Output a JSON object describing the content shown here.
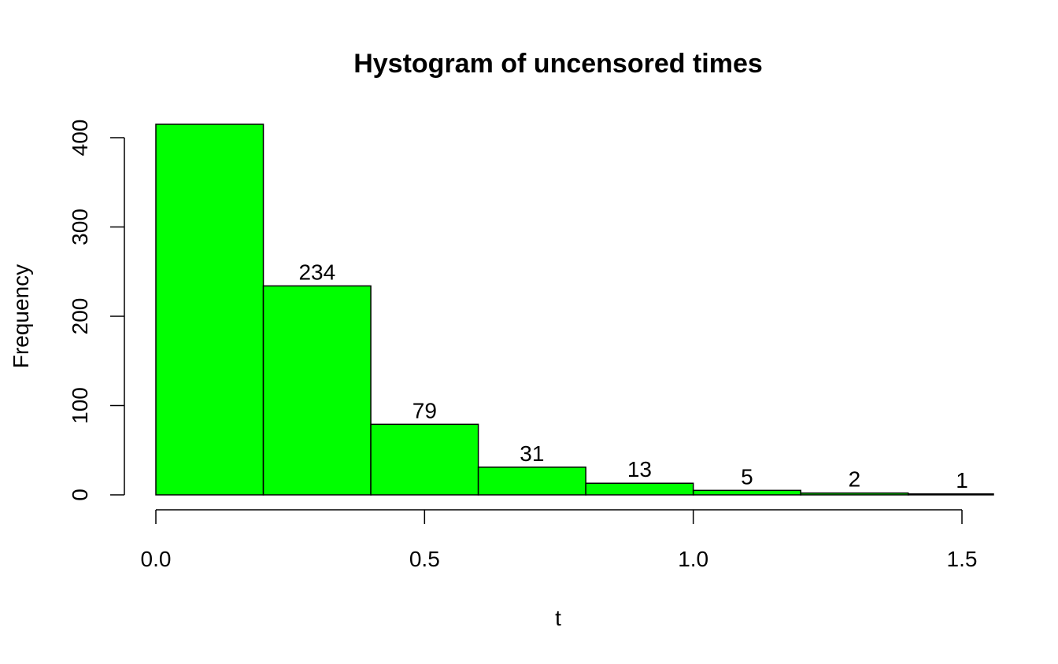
{
  "chart_data": {
    "type": "bar",
    "title": "Hystogram of uncensored times",
    "xlabel": "t",
    "ylabel": "Frequency",
    "bin_edges": [
      0.0,
      0.2,
      0.4,
      0.6,
      0.8,
      1.0,
      1.2,
      1.4,
      1.6
    ],
    "values": [
      415,
      234,
      79,
      31,
      13,
      5,
      2,
      1
    ],
    "data_labels": [
      "",
      "234",
      "79",
      "31",
      "13",
      "5",
      "2",
      "1"
    ],
    "xlim": [
      0.0,
      1.6
    ],
    "ylim": [
      0,
      415
    ],
    "x_ticks": [
      0.0,
      0.5,
      1.0,
      1.5
    ],
    "x_tick_labels": [
      "0.0",
      "0.5",
      "1.0",
      "1.5"
    ],
    "y_ticks": [
      0,
      100,
      200,
      300,
      400
    ],
    "y_tick_labels": [
      "0",
      "100",
      "200",
      "300",
      "400"
    ],
    "bar_color": "#00ff00",
    "edge_color": "#000000",
    "grid": false,
    "legend": "none"
  }
}
